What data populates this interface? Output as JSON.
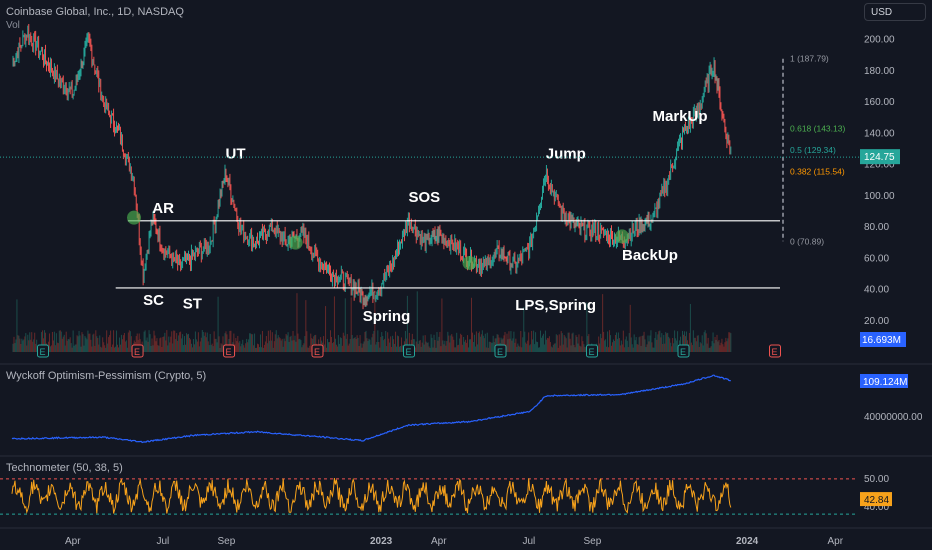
{
  "header": {
    "title": "Coinbase Global, Inc., 1D, NASDAQ",
    "volume_label": "Vol"
  },
  "currency_button": "USD",
  "colors": {
    "background": "#131722",
    "up": "#26a69a",
    "down": "#ef5350",
    "level_line": "#ffffff",
    "wyckoff_line": "#2962ff",
    "technometer_line": "#f7a21b",
    "fib_1": "#9598a1",
    "fib_0618": "#4caf50",
    "fib_05": "#26a69a",
    "fib_0382": "#ff9800",
    "dashed_upper": "#ef5350",
    "dashed_lower": "#26a69a"
  },
  "chart_data": [
    {
      "type": "line",
      "name": "price",
      "title": "Coinbase Global, Inc., 1D, NASDAQ",
      "x_ticks": [
        "Apr",
        "Jul",
        "Sep",
        "2023",
        "Apr",
        "Jul",
        "Sep",
        "2024",
        "Apr"
      ],
      "y_ticks": [
        "20.00",
        "40.00",
        "60.00",
        "80.00",
        "100.00",
        "120.00",
        "140.00",
        "160.00",
        "180.00",
        "200.00"
      ],
      "ylim": [
        0,
        210
      ],
      "last_price": "124.75",
      "volume_last": "16.693M",
      "approx_path": [
        {
          "month": 0,
          "price": 185
        },
        {
          "month": 0.5,
          "price": 205
        },
        {
          "month": 1,
          "price": 190
        },
        {
          "month": 1.5,
          "price": 175
        },
        {
          "month": 2,
          "price": 165
        },
        {
          "month": 2.5,
          "price": 200
        },
        {
          "month": 3,
          "price": 160
        },
        {
          "month": 3.5,
          "price": 140
        },
        {
          "month": 4,
          "price": 110
        },
        {
          "month": 4.3,
          "price": 50
        },
        {
          "month": 4.6,
          "price": 85
        },
        {
          "month": 5,
          "price": 65
        },
        {
          "month": 5.5,
          "price": 55
        },
        {
          "month": 6,
          "price": 62
        },
        {
          "month": 6.5,
          "price": 70
        },
        {
          "month": 7,
          "price": 115
        },
        {
          "month": 7.5,
          "price": 78
        },
        {
          "month": 8,
          "price": 70
        },
        {
          "month": 8.5,
          "price": 80
        },
        {
          "month": 9,
          "price": 70
        },
        {
          "month": 9.5,
          "price": 76
        },
        {
          "month": 10,
          "price": 60
        },
        {
          "month": 10.5,
          "price": 50
        },
        {
          "month": 11,
          "price": 45
        },
        {
          "month": 11.5,
          "price": 36
        },
        {
          "month": 12,
          "price": 40
        },
        {
          "month": 12.5,
          "price": 58
        },
        {
          "month": 13,
          "price": 85
        },
        {
          "month": 13.5,
          "price": 70
        },
        {
          "month": 14,
          "price": 75
        },
        {
          "month": 14.5,
          "price": 68
        },
        {
          "month": 15,
          "price": 60
        },
        {
          "month": 15.5,
          "price": 55
        },
        {
          "month": 16,
          "price": 65
        },
        {
          "month": 16.5,
          "price": 55
        },
        {
          "month": 17,
          "price": 68
        },
        {
          "month": 17.5,
          "price": 115
        },
        {
          "month": 18,
          "price": 90
        },
        {
          "month": 18.5,
          "price": 80
        },
        {
          "month": 19,
          "price": 78
        },
        {
          "month": 19.5,
          "price": 75
        },
        {
          "month": 20,
          "price": 72
        },
        {
          "month": 20.5,
          "price": 80
        },
        {
          "month": 21,
          "price": 85
        },
        {
          "month": 21.5,
          "price": 110
        },
        {
          "month": 22,
          "price": 140
        },
        {
          "month": 22.5,
          "price": 155
        },
        {
          "month": 23,
          "price": 185
        },
        {
          "month": 23.3,
          "price": 150
        },
        {
          "month": 23.6,
          "price": 125
        }
      ],
      "levels": {
        "resistance": 84,
        "support": 41
      },
      "fib_levels": [
        {
          "label": "1 (187.79)",
          "value": 187.79
        },
        {
          "label": "0.618 (143.13)",
          "value": 143.13
        },
        {
          "label": "0.5 (129.34)",
          "value": 129.34
        },
        {
          "label": "0.382 (115.54)",
          "value": 115.54
        },
        {
          "label": "0 (70.89)",
          "value": 70.89
        }
      ],
      "annotations": [
        {
          "text": "SC",
          "month": 4.3,
          "price": 30
        },
        {
          "text": "AR",
          "month": 4.6,
          "price": 89
        },
        {
          "text": "ST",
          "month": 5.6,
          "price": 28
        },
        {
          "text": "UT",
          "month": 7.0,
          "price": 124
        },
        {
          "text": "SOS",
          "month": 13.0,
          "price": 96
        },
        {
          "text": "Spring",
          "month": 11.5,
          "price": 20
        },
        {
          "text": "LPS,Spring",
          "month": 16.5,
          "price": 27
        },
        {
          "text": "Jump",
          "month": 17.5,
          "price": 124
        },
        {
          "text": "BackUp",
          "month": 20.0,
          "price": 59
        },
        {
          "text": "MarkUp",
          "month": 21.0,
          "price": 148
        }
      ],
      "green_markers": [
        {
          "month": 4.0,
          "price": 86
        },
        {
          "month": 9.3,
          "price": 70
        },
        {
          "month": 15.0,
          "price": 57
        },
        {
          "month": 20.0,
          "price": 74
        }
      ],
      "earnings_markers": [
        {
          "month": 1.0,
          "kind": "E",
          "color": "#26a69a"
        },
        {
          "month": 4.1,
          "kind": "E",
          "color": "#ef5350"
        },
        {
          "month": 7.1,
          "kind": "E",
          "color": "#ef5350"
        },
        {
          "month": 10.0,
          "kind": "E",
          "color": "#ef5350"
        },
        {
          "month": 13.0,
          "kind": "E",
          "color": "#26a69a"
        },
        {
          "month": 16.0,
          "kind": "E",
          "color": "#26a69a"
        },
        {
          "month": 19.0,
          "kind": "E",
          "color": "#26a69a"
        },
        {
          "month": 22.0,
          "kind": "E",
          "color": "#26a69a"
        },
        {
          "month": 25.0,
          "kind": "E",
          "color": "#ef5350"
        }
      ]
    },
    {
      "type": "line",
      "name": "Wyckoff Optimism-Pessimism (Crypto, 5)",
      "title": "Wyckoff Optimism-Pessimism (Crypto, 5)",
      "y_ticks": [
        "40000000.00"
      ],
      "last_value": "109.124M",
      "approx_path": [
        {
          "month": 0,
          "v": 0.05
        },
        {
          "month": 3,
          "v": 0.07
        },
        {
          "month": 4.3,
          "v": 0.0
        },
        {
          "month": 6,
          "v": 0.1
        },
        {
          "month": 8,
          "v": 0.15
        },
        {
          "month": 10,
          "v": 0.08
        },
        {
          "month": 11.5,
          "v": 0.02
        },
        {
          "month": 13,
          "v": 0.25
        },
        {
          "month": 15,
          "v": 0.3
        },
        {
          "month": 17,
          "v": 0.45
        },
        {
          "month": 17.5,
          "v": 0.68
        },
        {
          "month": 20,
          "v": 0.7
        },
        {
          "month": 22,
          "v": 0.85
        },
        {
          "month": 23,
          "v": 0.98
        },
        {
          "month": 23.6,
          "v": 0.9
        }
      ]
    },
    {
      "type": "line",
      "name": "Technometer (50, 38, 5)",
      "title": "Technometer (50, 38, 5)",
      "y_ticks": [
        "50.00",
        "40.00"
      ],
      "last_value": "42.84",
      "dashed_upper": 50,
      "dashed_lower": 37.5
    }
  ]
}
